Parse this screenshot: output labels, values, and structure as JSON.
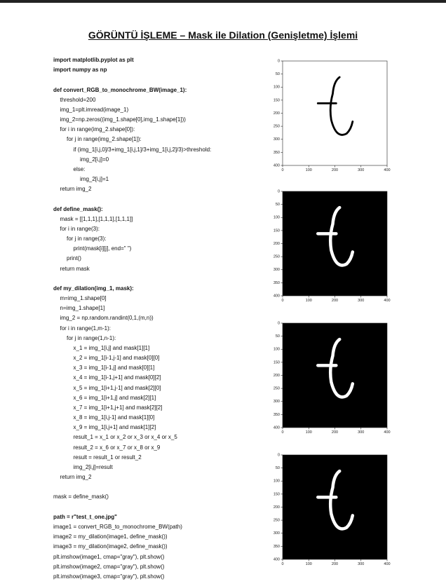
{
  "title": "GÖRÜNTÜ İŞLEME – Mask ile Dilation (Genişletme) İşlemi",
  "code": {
    "blocks": [
      {
        "header": [
          "import matplotlib.pyplot as plt",
          "import numpy as np"
        ],
        "body": []
      },
      {
        "header": [
          "def convert_RGB_to_monochrome_BW(image_1):"
        ],
        "body": [
          "    threshold=200",
          "    img_1=plt.imread(image_1)",
          "    img_2=np.zeros((img_1.shape[0],img_1.shape[1]))",
          "    for i in range(img_2.shape[0]):",
          "        for j in range(img_2.shape[1]):",
          "            if (img_1[i,j,0]/3+img_1[i,j,1]/3+img_1[i,j,2]/3)>threshold:",
          "                img_2[i,j]=0",
          "            else:",
          "                img_2[i,j]=1",
          "    return img_2"
        ]
      },
      {
        "header": [
          "def define_mask():"
        ],
        "body": [
          "    mask = [[1,1,1],[1,1,1],[1,1,1]]",
          "    for i in range(3):",
          "        for j in range(3):",
          "            print(mask[i][j], end=\" \")",
          "        print()",
          "    return mask"
        ]
      },
      {
        "header": [
          "def my_dilation(img_1, mask):"
        ],
        "body": [
          "    m=img_1.shape[0]",
          "    n=img_1.shape[1]",
          "    img_2 = np.random.randint(0,1,(m,n))",
          "    for i in range(1,m-1):",
          "        for j in range(1,n-1):",
          "            x_1 = img_1[i,j] and mask[1][1]",
          "            x_2 = img_1[i-1,j-1] and mask[0][0]",
          "            x_3 = img_1[i-1,j] and mask[0][1]",
          "            x_4 = img_1[i-1,j+1] and mask[0][2]",
          "            x_5 = img_1[i+1,j-1] and mask[2][0]",
          "            x_6 = img_1[i+1,j] and mask[2][1]",
          "            x_7 = img_1[i+1,j+1] and mask[2][2]",
          "            x_8 = img_1[i,j-1] and mask[1][0]",
          "            x_9 = img_1[i,j+1] and mask[1][2]",
          "            result_1 = x_1 or x_2 or x_3 or x_4 or x_5",
          "            result_2 = x_6 or x_7 or x_8 or x_9",
          "            result = result_1 or result_2",
          "            img_2[i,j]=result",
          "    return img_2"
        ]
      },
      {
        "header": [],
        "body": [
          "mask = define_mask()"
        ]
      },
      {
        "header": [
          "path = r\"test_t_one.jpg\""
        ],
        "body": [
          "image1 = convert_RGB_to_monochrome_BW(path)",
          "image2 = my_dilation(image1, define_mask())",
          "image3 = my_dilation(image2, define_mask())",
          "plt.imshow(image1, cmap=\"gray\"), plt.show()",
          "plt.imshow(image2, cmap=\"gray\"), plt.show()",
          "plt.imshow(image3, cmap=\"gray\"), plt.show()"
        ]
      }
    ]
  },
  "plots": [
    {
      "background": "#ffffff",
      "ink": "#000000",
      "xlim": [
        0,
        400
      ],
      "ylim": [
        400,
        0
      ],
      "xticks": [
        0,
        100,
        200,
        300,
        400
      ],
      "yticks": [
        0,
        50,
        100,
        150,
        200,
        250,
        300,
        350,
        400
      ]
    },
    {
      "background": "#000000",
      "ink": "#ffffff",
      "xlim": [
        0,
        400
      ],
      "ylim": [
        400,
        0
      ],
      "xticks": [
        0,
        100,
        200,
        300,
        400
      ],
      "yticks": [
        0,
        50,
        100,
        150,
        200,
        250,
        300,
        350,
        400
      ]
    },
    {
      "background": "#000000",
      "ink": "#ffffff",
      "xlim": [
        0,
        400
      ],
      "ylim": [
        400,
        0
      ],
      "xticks": [
        0,
        100,
        200,
        300,
        400
      ],
      "yticks": [
        0,
        50,
        100,
        150,
        200,
        250,
        300,
        350,
        400
      ]
    },
    {
      "background": "#000000",
      "ink": "#ffffff",
      "xlim": [
        0,
        400
      ],
      "ylim": [
        400,
        0
      ],
      "xticks": [
        0,
        100,
        200,
        300,
        400
      ],
      "yticks": [
        0,
        50,
        100,
        150,
        200,
        250,
        300,
        350,
        400
      ]
    }
  ]
}
